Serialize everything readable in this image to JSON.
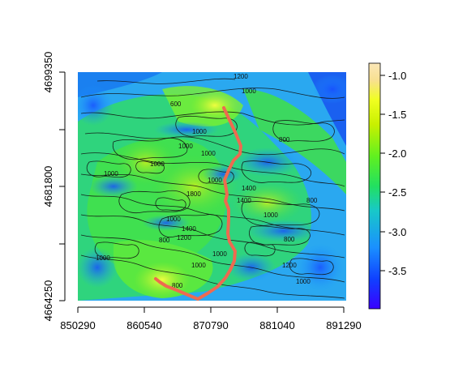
{
  "map": {
    "x_ticks": [
      "850290",
      "860540",
      "870790",
      "881040",
      "891290"
    ],
    "y_ticks": [
      "4664250",
      "4681800",
      "4699350"
    ],
    "colorbar_ticks": [
      "-1.0",
      "-1.5",
      "-2.0",
      "-2.5",
      "-3.0",
      "-3.5"
    ],
    "colorbar_colors": [
      "#3a00ff",
      "#1040ff",
      "#1a90ff",
      "#18c8c8",
      "#22e060",
      "#60f020",
      "#c8f000",
      "#f0ff20",
      "#f8e090",
      "#fbe7b8"
    ],
    "contour_labels": [
      "1200",
      "1000",
      "600",
      "1000",
      "1000",
      "1000",
      "1000",
      "1000",
      "1000",
      "1400",
      "1400",
      "1800",
      "1000",
      "1400",
      "1200",
      "800",
      "800",
      "800",
      "1000",
      "1200",
      "800",
      "800",
      "1000",
      "1000",
      "1000",
      "1000"
    ],
    "route_color": "#ee6a50"
  }
}
